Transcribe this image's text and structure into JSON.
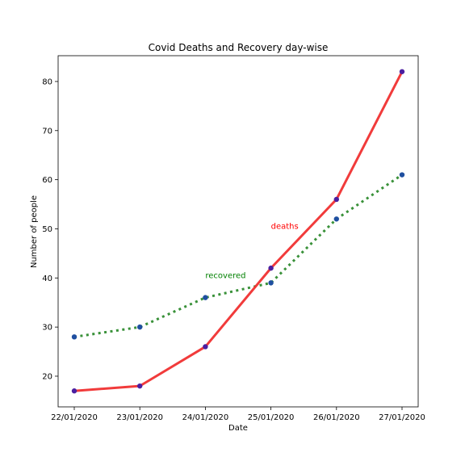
{
  "chart_data": {
    "type": "line",
    "title": "Covid Deaths and Recovery day-wise",
    "xlabel": "Date",
    "ylabel": "Number of people",
    "categories": [
      "22/01/2020",
      "23/01/2020",
      "24/01/2020",
      "25/01/2020",
      "26/01/2020",
      "27/01/2020"
    ],
    "yticks": [
      20,
      30,
      40,
      50,
      60,
      70,
      80
    ],
    "ylim": [
      13.75,
      85.25
    ],
    "grid": false,
    "series": [
      {
        "name": "deaths",
        "values": [
          17,
          18,
          26,
          42,
          56,
          82
        ],
        "line_color": "#f03030",
        "marker_color": "#4b1fa0",
        "line_style": "solid"
      },
      {
        "name": "recovered",
        "values": [
          28,
          30,
          36,
          39,
          52,
          61
        ],
        "line_color": "#2e8b2e",
        "marker_color": "#1f4fa0",
        "line_style": "dotted"
      }
    ],
    "annotations": [
      {
        "text": "deaths",
        "x_index": 3,
        "y": 50,
        "color": "#ff0000"
      },
      {
        "text": "recovered",
        "x_index": 2,
        "y": 40,
        "color": "#008000"
      }
    ]
  }
}
